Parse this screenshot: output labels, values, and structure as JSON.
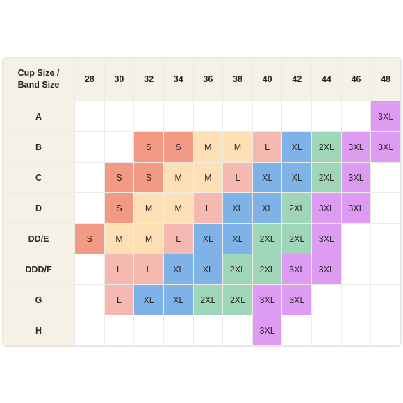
{
  "header": {
    "corner_line1": "Cup Size /",
    "corner_line2": "Band Size",
    "bands": [
      "28",
      "30",
      "32",
      "34",
      "36",
      "38",
      "40",
      "42",
      "44",
      "46",
      "48"
    ]
  },
  "rows": [
    {
      "cup": "A",
      "sizes": [
        "",
        "",
        "",
        "",
        "",
        "",
        "",
        "",
        "",
        "",
        "3XL"
      ]
    },
    {
      "cup": "B",
      "sizes": [
        "",
        "",
        "S",
        "S",
        "M",
        "M",
        "L",
        "XL",
        "2XL",
        "3XL",
        "3XL"
      ]
    },
    {
      "cup": "C",
      "sizes": [
        "",
        "S",
        "S",
        "M",
        "M",
        "L",
        "XL",
        "XL",
        "2XL",
        "3XL",
        ""
      ]
    },
    {
      "cup": "D",
      "sizes": [
        "",
        "S",
        "M",
        "M",
        "L",
        "XL",
        "XL",
        "2XL",
        "3XL",
        "3XL",
        ""
      ]
    },
    {
      "cup": "DD/E",
      "sizes": [
        "S",
        "M",
        "M",
        "L",
        "XL",
        "XL",
        "2XL",
        "2XL",
        "3XL",
        "",
        ""
      ]
    },
    {
      "cup": "DDD/F",
      "sizes": [
        "",
        "L",
        "L",
        "XL",
        "XL",
        "2XL",
        "2XL",
        "3XL",
        "3XL",
        "",
        ""
      ]
    },
    {
      "cup": "G",
      "sizes": [
        "",
        "L",
        "XL",
        "XL",
        "2XL",
        "2XL",
        "3XL",
        "3XL",
        "",
        "",
        ""
      ]
    },
    {
      "cup": "H",
      "sizes": [
        "",
        "",
        "",
        "",
        "",
        "",
        "3XL",
        "",
        "",
        "",
        ""
      ]
    }
  ],
  "size_colors": {
    "S": "#f29a86",
    "M": "#fde0b6",
    "L": "#f6b9b1",
    "XL": "#7fb3e8",
    "2XL": "#9fd6b9",
    "3XL": "#dd9bf1"
  }
}
